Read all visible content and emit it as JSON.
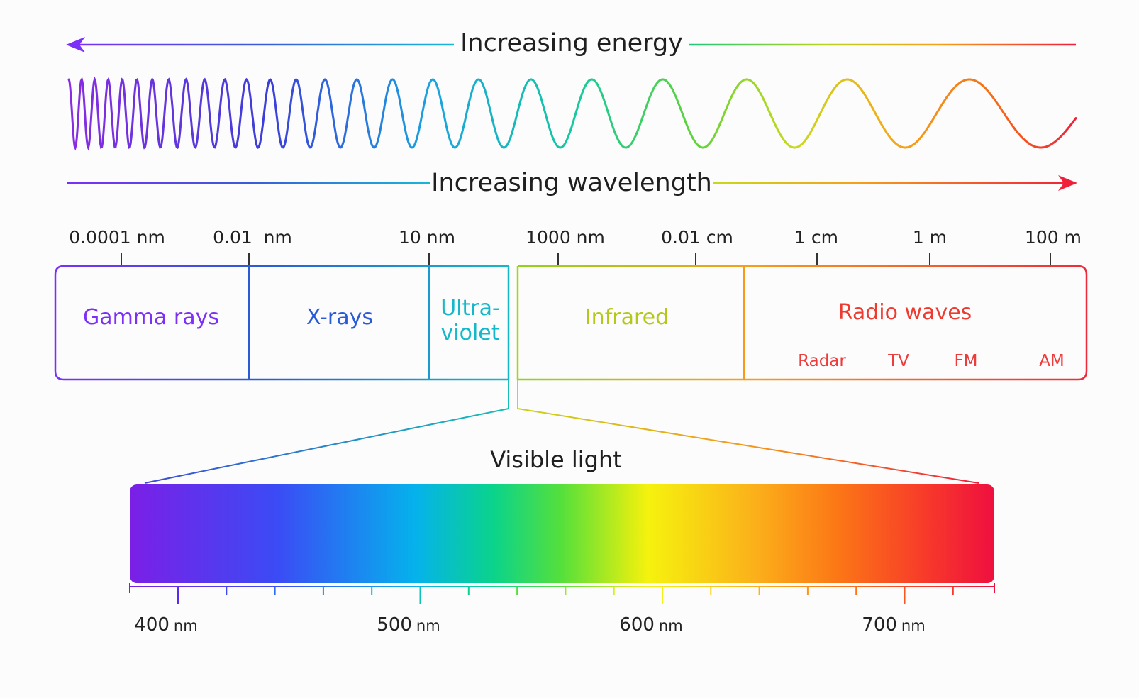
{
  "headers": {
    "energy": "Increasing energy",
    "wavelength": "Increasing wavelength"
  },
  "scale_labels": [
    "0.0001 nm",
    "0.01  nm",
    "10 nm",
    "1000 nm",
    "0.01 cm",
    "1 cm",
    "1 m",
    "100 m"
  ],
  "bands": {
    "gamma": "Gamma rays",
    "xray": "X-rays",
    "uv_line1": "Ultra-",
    "uv_line2": "violet",
    "infrared": "Infrared",
    "radio": "Radio waves"
  },
  "radio_subbands": [
    "Radar",
    "TV",
    "FM",
    "AM"
  ],
  "visible": {
    "title": "Visible light",
    "ticks": [
      {
        "value": "400",
        "unit": "nm"
      },
      {
        "value": "500",
        "unit": "nm"
      },
      {
        "value": "600",
        "unit": "nm"
      },
      {
        "value": "700",
        "unit": "nm"
      }
    ]
  },
  "colors": {
    "violet": "#7b2ff7",
    "blue": "#2a5bd7",
    "cyan": "#14b8c8",
    "green": "#19c97a",
    "yellow": "#b5c81a",
    "orange": "#f59a1a",
    "red": "#ef2a3a"
  }
}
